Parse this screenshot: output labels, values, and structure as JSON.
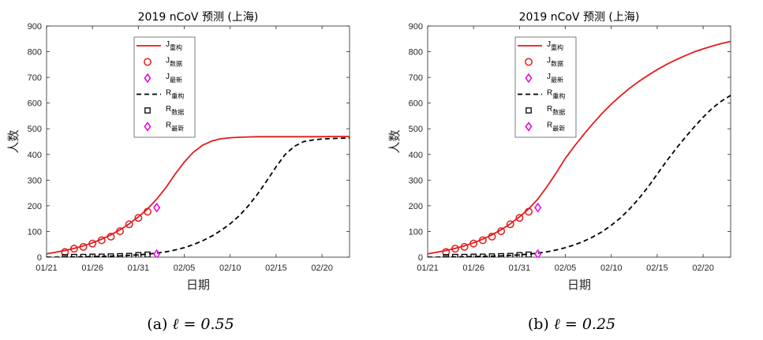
{
  "chart_data": [
    {
      "type": "line",
      "title": "2019 nCoV 预测 (上海)",
      "xlabel": "日期",
      "ylabel": "人数",
      "xlim": [
        0,
        33
      ],
      "ylim": [
        0,
        900
      ],
      "x_ticks": [
        {
          "x": 0,
          "label": "01/21"
        },
        {
          "x": 5,
          "label": "01/26"
        },
        {
          "x": 10,
          "label": "01/31"
        },
        {
          "x": 15,
          "label": "02/05"
        },
        {
          "x": 20,
          "label": "02/10"
        },
        {
          "x": 25,
          "label": "02/15"
        },
        {
          "x": 30,
          "label": "02/20"
        }
      ],
      "y_ticks": [
        0,
        100,
        200,
        300,
        400,
        500,
        600,
        700,
        800,
        900
      ],
      "legend": {
        "position": "top-left-inside"
      },
      "series": [
        {
          "name": "J",
          "sub": "重构",
          "style": "solid-line",
          "color": "#e31a1c",
          "x": [
            0,
            1,
            2,
            3,
            4,
            5,
            6,
            7,
            8,
            9,
            10,
            11,
            12,
            13,
            14,
            15,
            16,
            17,
            18,
            19,
            20,
            21,
            22,
            23,
            24,
            25,
            26,
            27,
            28,
            29,
            30,
            31,
            32,
            33
          ],
          "values": [
            13,
            19,
            26,
            34,
            44,
            56,
            70,
            87,
            107,
            130,
            157,
            188,
            226,
            271,
            323,
            370,
            409,
            436,
            452,
            461,
            465,
            467,
            468,
            469,
            469,
            469,
            469,
            469,
            469,
            469,
            469,
            470,
            470,
            470
          ]
        },
        {
          "name": "J",
          "sub": "数据",
          "style": "circle",
          "color": "#e31a1c",
          "x": [
            2,
            3,
            4,
            5,
            6,
            7,
            8,
            9,
            10,
            11
          ],
          "values": [
            20,
            33,
            40,
            53,
            66,
            80,
            101,
            128,
            153,
            177
          ]
        },
        {
          "name": "J",
          "sub": "最新",
          "style": "diamond",
          "color": "#e600e6",
          "x": [
            12
          ],
          "values": [
            193
          ]
        },
        {
          "name": "R",
          "sub": "重构",
          "style": "dashed-line",
          "color": "#000000",
          "x": [
            0,
            1,
            2,
            3,
            4,
            5,
            6,
            7,
            8,
            9,
            10,
            11,
            12,
            13,
            14,
            15,
            16,
            17,
            18,
            19,
            20,
            21,
            22,
            23,
            24,
            25,
            26,
            27,
            28,
            29,
            30,
            31,
            32,
            33
          ],
          "values": [
            0,
            0,
            1,
            1,
            1,
            2,
            3,
            4,
            5,
            7,
            9,
            12,
            16,
            21,
            28,
            37,
            49,
            64,
            82,
            104,
            130,
            162,
            201,
            246,
            298,
            352,
            400,
            432,
            450,
            456,
            460,
            462,
            463,
            464
          ]
        },
        {
          "name": "R",
          "sub": "数据",
          "style": "square",
          "color": "#000000",
          "x": [
            2,
            3,
            4,
            5,
            6,
            7,
            8,
            9,
            10,
            11
          ],
          "values": [
            0,
            1,
            1,
            2,
            2,
            3,
            4,
            5,
            8,
            10
          ]
        },
        {
          "name": "R",
          "sub": "最新",
          "style": "diamond",
          "color": "#e600e6",
          "x": [
            12
          ],
          "values": [
            12
          ]
        }
      ]
    },
    {
      "type": "line",
      "title": "2019 nCoV 预测 (上海)",
      "xlabel": "日期",
      "ylabel": "人数",
      "xlim": [
        0,
        33
      ],
      "ylim": [
        0,
        900
      ],
      "x_ticks": [
        {
          "x": 0,
          "label": "01/21"
        },
        {
          "x": 5,
          "label": "01/26"
        },
        {
          "x": 10,
          "label": "01/31"
        },
        {
          "x": 15,
          "label": "02/05"
        },
        {
          "x": 20,
          "label": "02/10"
        },
        {
          "x": 25,
          "label": "02/15"
        },
        {
          "x": 30,
          "label": "02/20"
        }
      ],
      "y_ticks": [
        0,
        100,
        200,
        300,
        400,
        500,
        600,
        700,
        800,
        900
      ],
      "legend": {
        "position": "top-left-inside"
      },
      "series": [
        {
          "name": "J",
          "sub": "重构",
          "style": "solid-line",
          "color": "#e31a1c",
          "x": [
            0,
            1,
            2,
            3,
            4,
            5,
            6,
            7,
            8,
            9,
            10,
            11,
            12,
            13,
            14,
            15,
            16,
            17,
            18,
            19,
            20,
            21,
            22,
            23,
            24,
            25,
            26,
            27,
            28,
            29,
            30,
            31,
            32,
            33
          ],
          "values": [
            13,
            19,
            26,
            34,
            44,
            56,
            70,
            87,
            107,
            130,
            157,
            188,
            226,
            275,
            328,
            385,
            433,
            478,
            520,
            560,
            596,
            628,
            658,
            684,
            708,
            730,
            750,
            768,
            784,
            799,
            811,
            822,
            832,
            840
          ]
        },
        {
          "name": "J",
          "sub": "数据",
          "style": "circle",
          "color": "#e31a1c",
          "x": [
            2,
            3,
            4,
            5,
            6,
            7,
            8,
            9,
            10,
            11
          ],
          "values": [
            20,
            33,
            40,
            53,
            66,
            80,
            101,
            128,
            153,
            177
          ]
        },
        {
          "name": "J",
          "sub": "最新",
          "style": "diamond",
          "color": "#e600e6",
          "x": [
            12
          ],
          "values": [
            193
          ]
        },
        {
          "name": "R",
          "sub": "重构",
          "style": "dashed-line",
          "color": "#000000",
          "x": [
            0,
            1,
            2,
            3,
            4,
            5,
            6,
            7,
            8,
            9,
            10,
            11,
            12,
            13,
            14,
            15,
            16,
            17,
            18,
            19,
            20,
            21,
            22,
            23,
            24,
            25,
            26,
            27,
            28,
            29,
            30,
            31,
            32,
            33
          ],
          "values": [
            0,
            0,
            1,
            1,
            1,
            2,
            3,
            4,
            5,
            7,
            9,
            12,
            16,
            21,
            28,
            37,
            48,
            62,
            79,
            99,
            124,
            153,
            188,
            228,
            273,
            323,
            373,
            420,
            464,
            506,
            545,
            580,
            608,
            630
          ]
        },
        {
          "name": "R",
          "sub": "数据",
          "style": "square",
          "color": "#000000",
          "x": [
            2,
            3,
            4,
            5,
            6,
            7,
            8,
            9,
            10,
            11
          ],
          "values": [
            0,
            1,
            1,
            2,
            2,
            3,
            4,
            5,
            8,
            10
          ]
        },
        {
          "name": "R",
          "sub": "最新",
          "style": "diamond",
          "color": "#e600e6",
          "x": [
            12
          ],
          "values": [
            12
          ]
        }
      ]
    }
  ],
  "captions": [
    {
      "label": "(a)",
      "math": "ℓ = 0.55"
    },
    {
      "label": "(b)",
      "math": "ℓ = 0.25"
    }
  ]
}
